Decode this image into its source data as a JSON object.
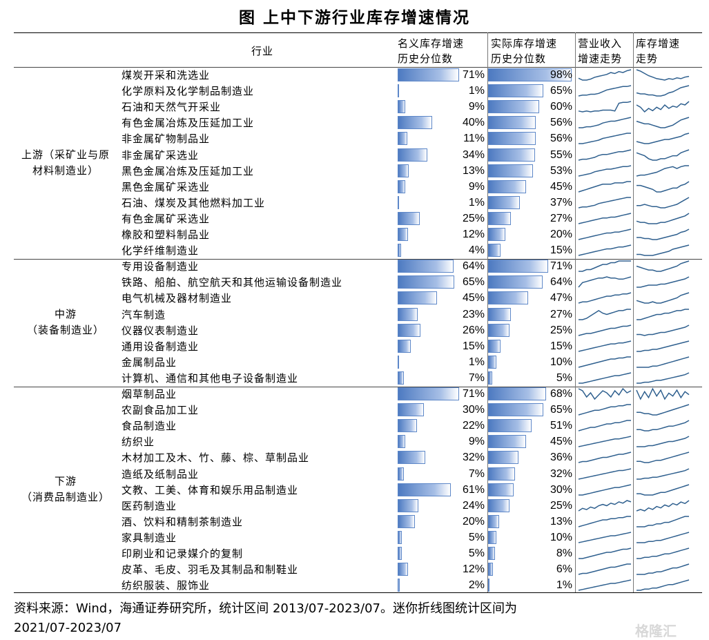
{
  "title": "图    上中下游行业库存增速情况",
  "header": {
    "industry": "行业",
    "nominal_line1": "名义库存增速",
    "nominal_line2": "历史分位数",
    "real_line1": "实际库存增速",
    "real_line2": "历史分位数",
    "revenue_line1": "营业收入",
    "revenue_line2": "增速走势",
    "inventory_line1": "库存增速",
    "inventory_line2": "走势"
  },
  "segments": [
    {
      "line1": "上游（采矿业与原",
      "line2": "材料制造业）"
    },
    {
      "line1": "中游",
      "line2": "（装备制造业）"
    },
    {
      "line1": "下游",
      "line2": "（消费品制造业）"
    }
  ],
  "rows": [
    {
      "name": "煤炭开采和洗选业",
      "nominal": 71,
      "nominal_label": "71%",
      "real": 98,
      "real_label": "98%",
      "rev": [
        6,
        4,
        4,
        5,
        7,
        8,
        9,
        10,
        12,
        11,
        13,
        12,
        14,
        15
      ],
      "inv": [
        18,
        16,
        13,
        10,
        8,
        6,
        5,
        4,
        6,
        5,
        7,
        6,
        8,
        9
      ]
    },
    {
      "name": "化学原料及化学制品制造业",
      "nominal": 1,
      "nominal_label": "1%",
      "real": 65,
      "real_label": "65%",
      "rev": [
        4,
        5,
        5,
        6,
        6,
        7,
        9,
        11,
        12,
        13,
        14,
        15,
        15,
        16
      ],
      "inv": [
        7,
        6,
        6,
        5,
        5,
        4,
        4,
        5,
        7,
        8,
        10,
        12,
        13,
        14
      ]
    },
    {
      "name": "石油和天然气开采业",
      "nominal": 9,
      "nominal_label": "9%",
      "real": 60,
      "real_label": "60%",
      "rev": [
        5,
        4,
        5,
        4,
        5,
        5,
        6,
        6,
        6,
        5,
        14,
        15,
        15,
        16
      ],
      "inv": [
        12,
        10,
        6,
        9,
        7,
        10,
        8,
        12,
        9,
        11,
        10,
        13,
        12,
        15
      ]
    },
    {
      "name": "有色金属冶炼及压延加工业",
      "nominal": 40,
      "nominal_label": "40%",
      "real": 56,
      "real_label": "56%",
      "rev": [
        5,
        5,
        6,
        6,
        7,
        8,
        10,
        11,
        12,
        12,
        13,
        14,
        15,
        16
      ],
      "inv": [
        10,
        9,
        8,
        8,
        7,
        6,
        5,
        5,
        6,
        7,
        9,
        11,
        12,
        13
      ]
    },
    {
      "name": "非金属矿物制品业",
      "nominal": 11,
      "nominal_label": "11%",
      "real": 56,
      "real_label": "56%",
      "rev": [
        4,
        4,
        5,
        6,
        7,
        8,
        10,
        11,
        12,
        13,
        14,
        15,
        16,
        16
      ],
      "inv": [
        6,
        5,
        4,
        4,
        5,
        6,
        7,
        8,
        8,
        9,
        10,
        11,
        13,
        14
      ]
    },
    {
      "name": "非金属矿采选业",
      "nominal": 34,
      "nominal_label": "34%",
      "real": 55,
      "real_label": "55%",
      "rev": [
        5,
        6,
        6,
        7,
        8,
        10,
        11,
        11,
        12,
        13,
        14,
        14,
        15,
        16
      ],
      "inv": [
        10,
        9,
        8,
        6,
        5,
        5,
        6,
        6,
        7,
        8,
        8,
        10,
        11,
        12
      ]
    },
    {
      "name": "黑色金属冶炼及压延加工业",
      "nominal": 13,
      "nominal_label": "13%",
      "real": 53,
      "real_label": "53%",
      "rev": [
        4,
        5,
        6,
        7,
        9,
        10,
        11,
        12,
        12,
        13,
        14,
        15,
        15,
        16
      ],
      "inv": [
        4,
        5,
        5,
        6,
        7,
        8,
        10,
        12,
        13,
        14,
        12,
        14,
        15,
        15
      ]
    },
    {
      "name": "黑色金属矿采选业",
      "nominal": 9,
      "nominal_label": "9%",
      "real": 45,
      "real_label": "45%",
      "rev": [
        6,
        7,
        8,
        9,
        10,
        11,
        12,
        12,
        12,
        13,
        13,
        13,
        14,
        14
      ],
      "inv": [
        12,
        12,
        11,
        10,
        9,
        7,
        7,
        8,
        9,
        10,
        10,
        12,
        13,
        15
      ]
    },
    {
      "name": "石油、煤炭及其他燃料加工业",
      "nominal": 1,
      "nominal_label": "1%",
      "real": 37,
      "real_label": "37%",
      "rev": [
        4,
        5,
        5,
        6,
        7,
        9,
        10,
        11,
        12,
        13,
        14,
        15,
        16,
        16
      ],
      "inv": [
        6,
        6,
        7,
        6,
        5,
        5,
        4,
        4,
        5,
        6,
        7,
        9,
        11,
        13
      ]
    },
    {
      "name": "有色金属矿采选业",
      "nominal": 25,
      "nominal_label": "25%",
      "real": 27,
      "real_label": "27%",
      "rev": [
        5,
        6,
        7,
        8,
        9,
        10,
        11,
        11,
        12,
        12,
        13,
        14,
        15,
        16
      ],
      "inv": [
        8,
        7,
        7,
        6,
        6,
        6,
        7,
        7,
        8,
        9,
        10,
        11,
        12,
        14
      ]
    },
    {
      "name": "橡胶和塑料制品业",
      "nominal": 12,
      "nominal_label": "12%",
      "real": 20,
      "real_label": "20%",
      "rev": [
        5,
        6,
        7,
        8,
        9,
        10,
        11,
        12,
        12,
        13,
        13,
        14,
        15,
        16
      ],
      "inv": [
        7,
        7,
        6,
        6,
        5,
        5,
        6,
        7,
        8,
        9,
        10,
        12,
        13,
        15
      ]
    },
    {
      "name": "化学纤维制造业",
      "nominal": 4,
      "nominal_label": "4%",
      "real": 15,
      "real_label": "15%",
      "rev": [
        5,
        6,
        7,
        8,
        9,
        10,
        11,
        12,
        12,
        13,
        14,
        14,
        15,
        16
      ],
      "inv": [
        6,
        6,
        5,
        5,
        5,
        6,
        7,
        8,
        9,
        11,
        12,
        13,
        14,
        15
      ]
    },
    {
      "name": "专用设备制造业",
      "nominal": 64,
      "nominal_label": "64%",
      "real": 71,
      "real_label": "71%",
      "rev": [
        6,
        6,
        7,
        7,
        8,
        9,
        10,
        10,
        11,
        11,
        12,
        12,
        12,
        12
      ],
      "inv": [
        10,
        9,
        8,
        7,
        7,
        6,
        6,
        7,
        8,
        9,
        10,
        12,
        13,
        14
      ]
    },
    {
      "name": "铁路、船舶、航空航天和其他运输设备制造业",
      "nominal": 65,
      "nominal_label": "65%",
      "real": 64,
      "real_label": "64%",
      "rev": [
        4,
        8,
        9,
        10,
        11,
        12,
        12,
        13,
        12,
        12,
        11,
        11,
        12,
        13
      ],
      "inv": [
        6,
        6,
        7,
        8,
        8,
        8,
        9,
        9,
        10,
        11,
        12,
        13,
        14,
        16
      ]
    },
    {
      "name": "电气机械及器材制造业",
      "nominal": 45,
      "nominal_label": "45%",
      "real": 47,
      "real_label": "47%",
      "rev": [
        5,
        6,
        6,
        7,
        8,
        9,
        10,
        11,
        11,
        12,
        12,
        13,
        13,
        14
      ],
      "inv": [
        8,
        7,
        6,
        6,
        7,
        6,
        6,
        7,
        8,
        9,
        10,
        12,
        13,
        14
      ]
    },
    {
      "name": "汽车制造",
      "nominal": 23,
      "nominal_label": "23%",
      "real": 27,
      "real_label": "27%",
      "rev": [
        5,
        5,
        6,
        8,
        10,
        12,
        10,
        9,
        10,
        11,
        12,
        12,
        13,
        13
      ],
      "inv": [
        6,
        6,
        7,
        8,
        9,
        10,
        10,
        11,
        11,
        12,
        13,
        13,
        14,
        14
      ]
    },
    {
      "name": "仪器仪表制造业",
      "nominal": 26,
      "nominal_label": "26%",
      "real": 25,
      "real_label": "25%",
      "rev": [
        5,
        6,
        7,
        7,
        8,
        9,
        10,
        11,
        12,
        12,
        13,
        14,
        14,
        15
      ],
      "inv": [
        6,
        6,
        5,
        6,
        6,
        7,
        8,
        8,
        9,
        10,
        11,
        12,
        13,
        15
      ]
    },
    {
      "name": "通用设备制造业",
      "nominal": 15,
      "nominal_label": "15%",
      "real": 15,
      "real_label": "15%",
      "rev": [
        4,
        5,
        6,
        7,
        8,
        9,
        10,
        11,
        12,
        12,
        13,
        13,
        14,
        15
      ],
      "inv": [
        5,
        5,
        6,
        6,
        7,
        7,
        8,
        9,
        10,
        11,
        12,
        13,
        14,
        15
      ]
    },
    {
      "name": "金属制品业",
      "nominal": 1,
      "nominal_label": "1%",
      "real": 10,
      "real_label": "10%",
      "rev": [
        4,
        5,
        6,
        7,
        8,
        9,
        10,
        11,
        12,
        12,
        13,
        13,
        14,
        14
      ],
      "inv": [
        6,
        6,
        6,
        6,
        7,
        7,
        8,
        9,
        10,
        11,
        12,
        13,
        14,
        15
      ]
    },
    {
      "name": "计算机、通信和其他电子设备制造业",
      "nominal": 7,
      "nominal_label": "7%",
      "real": 5,
      "real_label": "5%",
      "rev": [
        5,
        5,
        6,
        7,
        8,
        9,
        10,
        11,
        12,
        13,
        13,
        14,
        15,
        16
      ],
      "inv": [
        5,
        5,
        6,
        6,
        7,
        8,
        8,
        9,
        10,
        11,
        12,
        13,
        14,
        16
      ]
    },
    {
      "name": "烟草制品业",
      "nominal": 71,
      "nominal_label": "71%",
      "real": 68,
      "real_label": "68%",
      "rev": [
        10,
        9,
        6,
        8,
        5,
        7,
        9,
        8,
        6,
        9,
        7,
        10,
        8,
        9
      ],
      "inv": [
        12,
        6,
        11,
        7,
        13,
        8,
        12,
        6,
        10,
        8,
        12,
        7,
        11,
        9
      ]
    },
    {
      "name": "农副食品加工业",
      "nominal": 30,
      "nominal_label": "30%",
      "real": 65,
      "real_label": "65%",
      "rev": [
        5,
        6,
        7,
        8,
        9,
        9,
        10,
        11,
        12,
        12,
        13,
        13,
        14,
        14
      ],
      "inv": [
        8,
        8,
        7,
        7,
        6,
        6,
        7,
        8,
        9,
        10,
        11,
        12,
        13,
        14
      ]
    },
    {
      "name": "食品制造业",
      "nominal": 22,
      "nominal_label": "22%",
      "real": 51,
      "real_label": "51%",
      "rev": [
        5,
        6,
        7,
        8,
        8,
        9,
        10,
        11,
        11,
        12,
        12,
        13,
        14,
        14
      ],
      "inv": [
        7,
        7,
        6,
        6,
        7,
        7,
        8,
        9,
        10,
        10,
        11,
        12,
        13,
        15
      ]
    },
    {
      "name": "纺织业",
      "nominal": 9,
      "nominal_label": "9%",
      "real": 45,
      "real_label": "45%",
      "rev": [
        4,
        5,
        6,
        7,
        8,
        9,
        10,
        11,
        12,
        13,
        13,
        14,
        15,
        16
      ],
      "inv": [
        6,
        6,
        6,
        7,
        7,
        8,
        9,
        10,
        11,
        11,
        12,
        13,
        14,
        16
      ]
    },
    {
      "name": "木材加工及木、竹、藤、棕、草制品业",
      "nominal": 32,
      "nominal_label": "32%",
      "real": 36,
      "real_label": "36%",
      "rev": [
        5,
        6,
        6,
        7,
        8,
        9,
        10,
        10,
        11,
        12,
        13,
        13,
        14,
        15
      ],
      "inv": [
        7,
        7,
        6,
        6,
        7,
        8,
        8,
        9,
        10,
        11,
        12,
        13,
        14,
        15
      ]
    },
    {
      "name": "造纸及纸制品业",
      "nominal": 7,
      "nominal_label": "7%",
      "real": 32,
      "real_label": "32%",
      "rev": [
        4,
        5,
        6,
        7,
        8,
        9,
        10,
        11,
        12,
        13,
        14,
        14,
        15,
        16
      ],
      "inv": [
        5,
        5,
        6,
        6,
        7,
        7,
        8,
        9,
        10,
        11,
        12,
        13,
        14,
        16
      ]
    },
    {
      "name": "文教、工美、体育和娱乐用品制造业",
      "nominal": 61,
      "nominal_label": "61%",
      "real": 30,
      "real_label": "30%",
      "rev": [
        5,
        5,
        6,
        7,
        8,
        9,
        10,
        11,
        12,
        13,
        13,
        14,
        15,
        16
      ],
      "inv": [
        8,
        8,
        7,
        7,
        7,
        8,
        9,
        9,
        10,
        11,
        12,
        13,
        14,
        15
      ]
    },
    {
      "name": "医药制造业",
      "nominal": 24,
      "nominal_label": "24%",
      "real": 25,
      "real_label": "25%",
      "rev": [
        5,
        7,
        6,
        8,
        7,
        9,
        10,
        9,
        11,
        10,
        12,
        11,
        13,
        12
      ],
      "inv": [
        6,
        7,
        6,
        8,
        7,
        9,
        8,
        10,
        9,
        11,
        10,
        12,
        11,
        13
      ]
    },
    {
      "name": "酒、饮料和精制茶制造业",
      "nominal": 20,
      "nominal_label": "20%",
      "real": 13,
      "real_label": "13%",
      "rev": [
        5,
        6,
        7,
        8,
        9,
        10,
        11,
        11,
        12,
        12,
        13,
        13,
        14,
        14
      ],
      "inv": [
        7,
        7,
        7,
        8,
        8,
        9,
        9,
        10,
        10,
        11,
        12,
        13,
        14,
        14
      ]
    },
    {
      "name": "家具制造业",
      "nominal": 5,
      "nominal_label": "5%",
      "real": 10,
      "real_label": "10%",
      "rev": [
        4,
        5,
        6,
        7,
        8,
        9,
        10,
        11,
        12,
        12,
        13,
        14,
        15,
        16
      ],
      "inv": [
        6,
        6,
        6,
        7,
        7,
        8,
        8,
        9,
        10,
        11,
        12,
        13,
        14,
        15
      ]
    },
    {
      "name": "印刷业和记录媒介的复制",
      "nominal": 5,
      "nominal_label": "5%",
      "real": 8,
      "real_label": "8%",
      "rev": [
        5,
        5,
        6,
        7,
        8,
        9,
        10,
        11,
        11,
        12,
        13,
        14,
        14,
        15
      ],
      "inv": [
        6,
        6,
        7,
        7,
        8,
        8,
        9,
        10,
        10,
        11,
        12,
        13,
        14,
        15
      ]
    },
    {
      "name": "皮革、毛皮、羽毛及其制品和制鞋业",
      "nominal": 12,
      "nominal_label": "12%",
      "real": 6,
      "real_label": "6%",
      "rev": [
        5,
        6,
        6,
        7,
        8,
        9,
        10,
        11,
        12,
        12,
        13,
        14,
        15,
        15
      ],
      "inv": [
        7,
        7,
        7,
        8,
        8,
        9,
        9,
        10,
        11,
        12,
        12,
        13,
        14,
        15
      ]
    },
    {
      "name": "纺织服装、服饰业",
      "nominal": 2,
      "nominal_label": "2%",
      "real": 1,
      "real_label": "1%",
      "rev": [
        4,
        5,
        6,
        7,
        8,
        9,
        10,
        11,
        12,
        12,
        13,
        14,
        15,
        16
      ],
      "inv": [
        6,
        6,
        7,
        7,
        8,
        8,
        9,
        10,
        11,
        11,
        12,
        13,
        14,
        15
      ]
    }
  ],
  "footer_line1": "资料来源：Wind，海通证券研究所，统计区间 2013/07-2023/07。迷你折线图统计区间为",
  "footer_line2": "2021/07-2023/07",
  "watermark": "格隆汇",
  "colors": {
    "bar": "#4d7ac1",
    "spark": "#2e5f8e"
  }
}
